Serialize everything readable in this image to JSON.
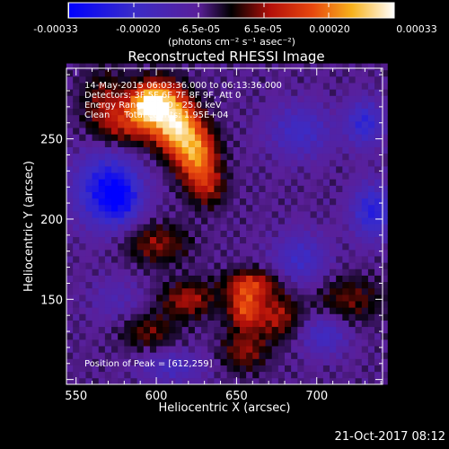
{
  "colorbar": {
    "tick_labels": [
      "-0.00033",
      "-0.00020",
      "-6.5e-05",
      "6.5e-05",
      "0.00020",
      "0.00033"
    ],
    "unit_label": "(photons cm⁻² s⁻¹ asec⁻²)"
  },
  "timestamp": "21-Oct-2017 08:12",
  "chart_data": {
    "type": "heatmap",
    "title": "Reconstructed RHESSI Image",
    "xlabel": "Heliocentric X (arcsec)",
    "ylabel": "Heliocentric Y (arcsec)",
    "xlim": [
      544,
      741
    ],
    "ylim": [
      97,
      294
    ],
    "x_ticks": [
      550,
      600,
      650,
      700
    ],
    "y_ticks": [
      150,
      200,
      250
    ],
    "x_tick_labels": [
      "550",
      "600",
      "650",
      "700"
    ],
    "y_tick_labels": [
      "150",
      "200",
      "250"
    ],
    "zlim": [
      -0.00033,
      0.00033
    ],
    "colormap": "RHESSI diverging: blue - purple - black - red - orange - yellow - white",
    "annotations": [
      "14-May-2015 06:03:36.000 to 06:13:36.000",
      "Detectors: 3F 5F 6F 7F 8F 9F, Att 0",
      "Energy Range: 12.0 - 25.0 keV",
      "Clean     Total counts: 1.95E+04"
    ],
    "peak_label": "Position of Peak = [612,259]",
    "peak": {
      "x": 612,
      "y": 259,
      "value": 0.00033
    },
    "sources": [
      {
        "x": 612,
        "y": 259,
        "sx": 10,
        "sy": 12,
        "value": 0.00033
      },
      {
        "x": 625,
        "y": 240,
        "sx": 9,
        "sy": 12,
        "value": 0.00026
      },
      {
        "x": 600,
        "y": 276,
        "sx": 10,
        "sy": 9,
        "value": 0.00022
      },
      {
        "x": 585,
        "y": 258,
        "sx": 12,
        "sy": 9,
        "value": 0.00014
      },
      {
        "x": 594,
        "y": 270,
        "sx": 8,
        "sy": 7,
        "value": 0.00022
      },
      {
        "x": 632,
        "y": 220,
        "sx": 8,
        "sy": 9,
        "value": 0.00012
      },
      {
        "x": 568,
        "y": 272,
        "sx": 10,
        "sy": 14,
        "value": 0.00012
      },
      {
        "x": 600,
        "y": 185,
        "sx": 14,
        "sy": 9,
        "value": 0.00012
      },
      {
        "x": 620,
        "y": 150,
        "sx": 12,
        "sy": 8,
        "value": 0.00014
      },
      {
        "x": 660,
        "y": 160,
        "sx": 12,
        "sy": 6,
        "value": 0.00016
      },
      {
        "x": 655,
        "y": 145,
        "sx": 7,
        "sy": 9,
        "value": 0.0002
      },
      {
        "x": 675,
        "y": 140,
        "sx": 10,
        "sy": 10,
        "value": 0.00014
      },
      {
        "x": 720,
        "y": 150,
        "sx": 15,
        "sy": 10,
        "value": 0.0001
      },
      {
        "x": 655,
        "y": 118,
        "sx": 10,
        "sy": 9,
        "value": 0.00012
      },
      {
        "x": 595,
        "y": 130,
        "sx": 12,
        "sy": 8,
        "value": 0.0001
      },
      {
        "x": 570,
        "y": 218,
        "sx": 14,
        "sy": 16,
        "value": -0.00024
      },
      {
        "x": 578,
        "y": 212,
        "sx": 7,
        "sy": 9,
        "value": -0.0001
      },
      {
        "x": 690,
        "y": 255,
        "sx": 14,
        "sy": 12,
        "value": -0.00012
      },
      {
        "x": 730,
        "y": 260,
        "sx": 8,
        "sy": 10,
        "value": -0.00016
      },
      {
        "x": 735,
        "y": 205,
        "sx": 9,
        "sy": 12,
        "value": -0.00018
      },
      {
        "x": 690,
        "y": 175,
        "sx": 12,
        "sy": 12,
        "value": -0.00012
      },
      {
        "x": 705,
        "y": 128,
        "sx": 10,
        "sy": 9,
        "value": -0.00012
      },
      {
        "x": 610,
        "y": 108,
        "sx": 14,
        "sy": 7,
        "value": -0.0001
      },
      {
        "x": 575,
        "y": 150,
        "sx": 12,
        "sy": 10,
        "value": -6e-05
      }
    ]
  }
}
